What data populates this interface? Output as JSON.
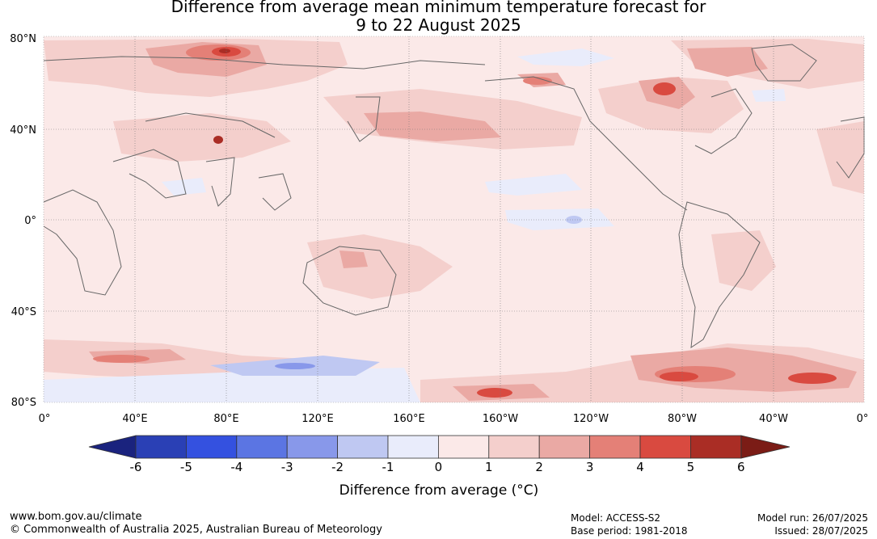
{
  "title": {
    "line1": "Difference from average mean minimum temperature forecast for",
    "line2": "9 to 22 August 2025"
  },
  "axes": {
    "lat_labels": [
      "80°N",
      "40°N",
      "0°",
      "40°S",
      "80°S"
    ],
    "lon_labels": [
      "0°",
      "40°E",
      "80°E",
      "120°E",
      "160°E",
      "160°W",
      "120°W",
      "80°W",
      "40°W",
      "0°"
    ]
  },
  "colorbar": {
    "ticks": [
      "-6",
      "-5",
      "-4",
      "-3",
      "-2",
      "-1",
      "0",
      "1",
      "2",
      "3",
      "4",
      "5",
      "6"
    ],
    "colors": [
      "#1a237e",
      "#2a40b5",
      "#3451e0",
      "#5b75e3",
      "#8898ea",
      "#bfc8f2",
      "#e9ecfb",
      "#fbe9e8",
      "#f4cfcc",
      "#eaa9a4",
      "#e48077",
      "#d94a40",
      "#aa2d25",
      "#7b1c16"
    ],
    "title": "Difference from average (°C)"
  },
  "footer": {
    "website": "www.bom.gov.au/climate",
    "copyright": "© Commonwealth of Australia 2025, Australian Bureau of Meteorology",
    "model": "Model: ACCESS-S2",
    "base_period": "Base period: 1981-2018",
    "model_run": "Model run: 26/07/2025",
    "issued": "Issued: 28/07/2025"
  }
}
